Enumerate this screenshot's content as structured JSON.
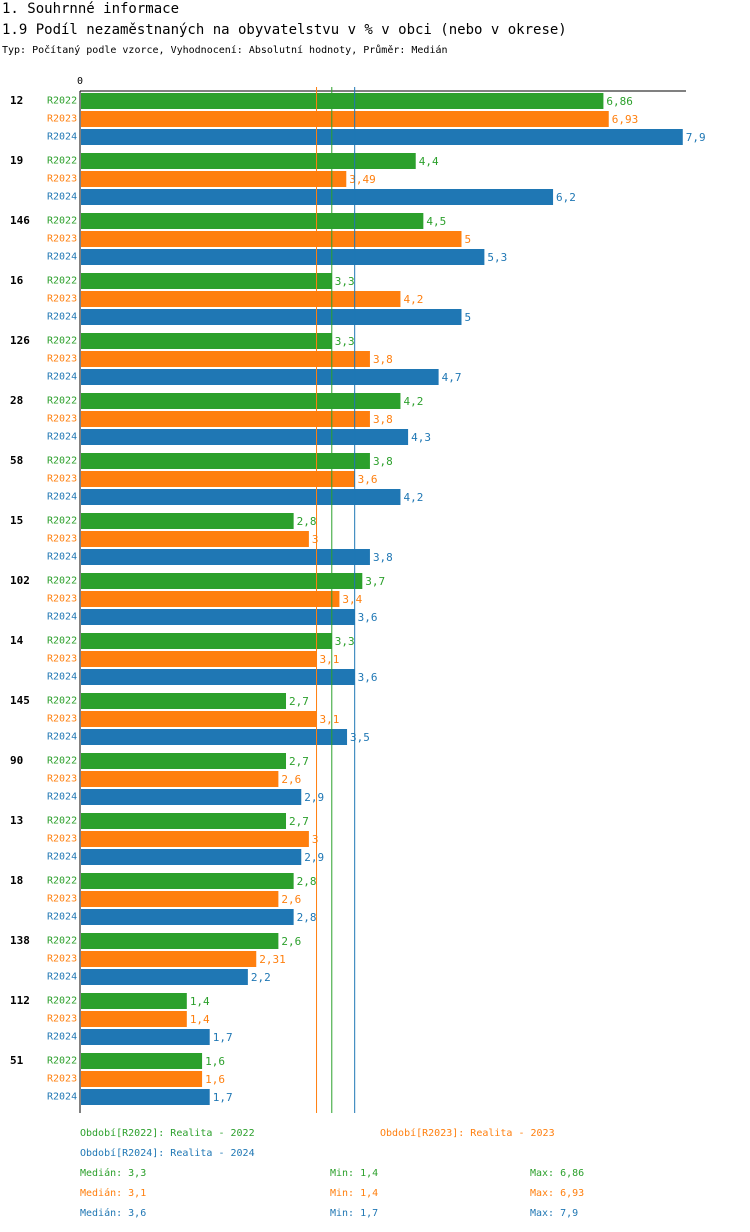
{
  "header": {
    "section": "1. Souhrnné informace",
    "title": "1.9 Podíl nezaměstnaných na obyvatelstvu v % v obci (nebo v okrese)",
    "subtitle": "Typ: Počítaný podle vzorce, Vyhodnocení: Absolutní hodnoty, Průměr: Medián"
  },
  "colors": {
    "R2022": "#2ca02c",
    "R2023": "#ff7f0e",
    "R2024": "#1f77b4"
  },
  "chart_data": {
    "type": "bar",
    "orientation": "horizontal",
    "axis_zero_label": "0",
    "xlim": [
      0,
      7.9
    ],
    "categories": [
      "12",
      "19",
      "146",
      "16",
      "126",
      "28",
      "58",
      "15",
      "102",
      "14",
      "145",
      "90",
      "13",
      "18",
      "138",
      "112",
      "51"
    ],
    "series": [
      {
        "name": "R2022",
        "values": [
          6.86,
          4.4,
          4.5,
          3.3,
          3.3,
          4.2,
          3.8,
          2.8,
          3.7,
          3.3,
          2.7,
          2.7,
          2.7,
          2.8,
          2.6,
          1.4,
          1.6
        ],
        "labels": [
          "6,86",
          "4,4",
          "4,5",
          "3,3",
          "3,3",
          "4,2",
          "3,8",
          "2,8",
          "3,7",
          "3,3",
          "2,7",
          "2,7",
          "2,7",
          "2,8",
          "2,6",
          "1,4",
          "1,6"
        ]
      },
      {
        "name": "R2023",
        "values": [
          6.93,
          3.49,
          5,
          4.2,
          3.8,
          3.8,
          3.6,
          3,
          3.4,
          3.1,
          3.1,
          2.6,
          3,
          2.6,
          2.31,
          1.4,
          1.6
        ],
        "labels": [
          "6,93",
          "3,49",
          "5",
          "4,2",
          "3,8",
          "3,8",
          "3,6",
          "3",
          "3,4",
          "3,1",
          "3,1",
          "2,6",
          "3",
          "2,6",
          "2,31",
          "1,4",
          "1,6"
        ]
      },
      {
        "name": "R2024",
        "values": [
          7.9,
          6.2,
          5.3,
          5,
          4.7,
          4.3,
          4.2,
          3.8,
          3.6,
          3.6,
          3.5,
          2.9,
          2.9,
          2.8,
          2.2,
          1.7,
          1.7
        ],
        "labels": [
          "7,9",
          "6,2",
          "5,3",
          "5",
          "4,7",
          "4,3",
          "4,2",
          "3,8",
          "3,6",
          "3,6",
          "3,5",
          "2,9",
          "2,9",
          "2,8",
          "2,2",
          "1,7",
          "1,7"
        ]
      }
    ],
    "medians": {
      "R2022": 3.3,
      "R2023": 3.1,
      "R2024": 3.6
    }
  },
  "legend": {
    "periods": [
      "Období[R2022]: Realita - 2022",
      "Období[R2023]: Realita - 2023",
      "Období[R2024]: Realita - 2024"
    ],
    "stats": [
      {
        "median": "Medián: 3,3",
        "min": "Min: 1,4",
        "max": "Max: 6,86"
      },
      {
        "median": "Medián: 3,1",
        "min": "Min: 1,4",
        "max": "Max: 6,93"
      },
      {
        "median": "Medián: 3,6",
        "min": "Min: 1,7",
        "max": "Max: 7,9"
      }
    ]
  }
}
